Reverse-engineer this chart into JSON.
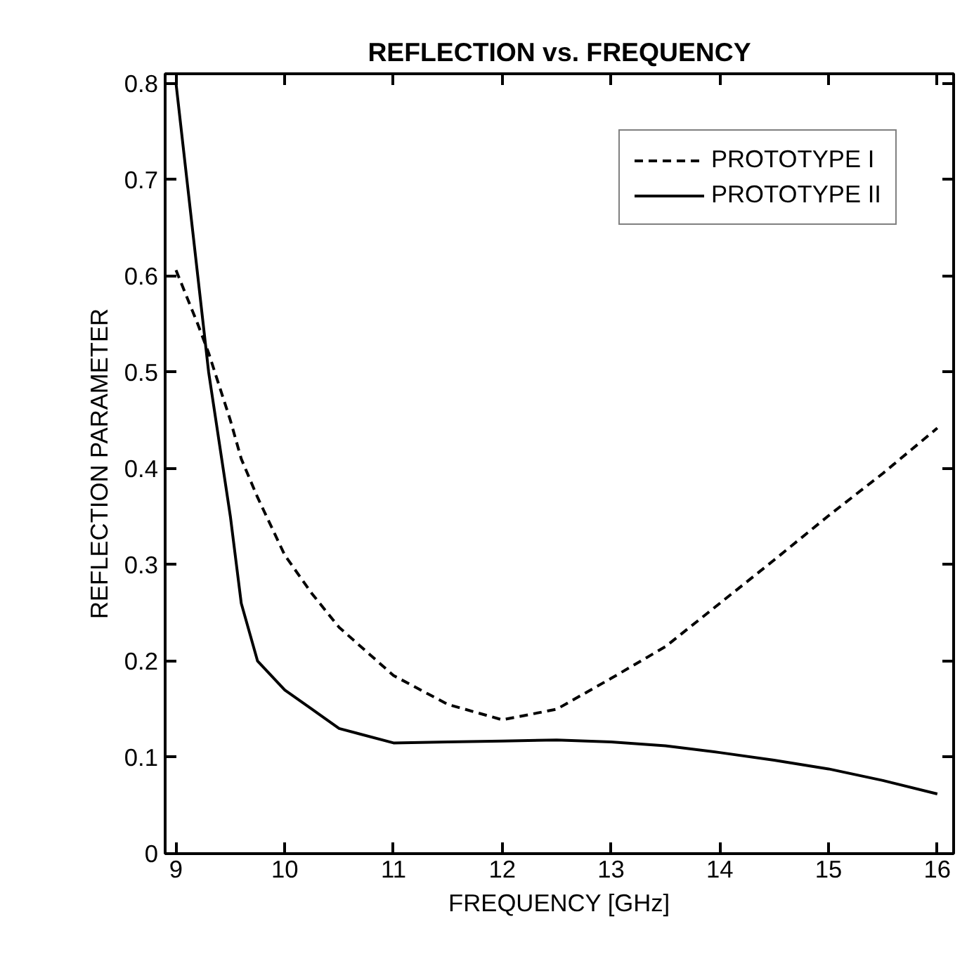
{
  "chart_data": {
    "type": "line",
    "title": "REFLECTION vs. FREQUENCY",
    "xlabel": "FREQUENCY [GHz]",
    "ylabel": "REFLECTION PARAMETER",
    "x": [
      9,
      9.2,
      9.3,
      9.5,
      9.6,
      9.75,
      10,
      10.25,
      10.5,
      11,
      11.5,
      12,
      12.5,
      13,
      13.5,
      14,
      14.5,
      15,
      15.5,
      16
    ],
    "series": [
      {
        "name": "PROTOTYPE I",
        "color": "#000000",
        "line_style": "dashed",
        "values": [
          0.606,
          0.55,
          0.52,
          0.45,
          0.41,
          0.37,
          0.31,
          0.27,
          0.235,
          0.185,
          0.155,
          0.139,
          0.15,
          0.182,
          0.215,
          0.26,
          0.305,
          0.351,
          0.395,
          0.442
        ]
      },
      {
        "name": "PROTOTYPE II",
        "color": "#000000",
        "line_style": "solid",
        "values": [
          0.8,
          0.6,
          0.5,
          0.35,
          0.26,
          0.2,
          0.17,
          0.15,
          0.13,
          0.115,
          0.116,
          0.117,
          0.118,
          0.116,
          0.112,
          0.105,
          0.097,
          0.088,
          0.076,
          0.062
        ]
      }
    ],
    "xlim": [
      8.9,
      16.15
    ],
    "ylim": [
      0,
      0.81
    ],
    "xticks": [
      9,
      10,
      11,
      12,
      13,
      14,
      15,
      16
    ],
    "yticks": [
      0,
      0.1,
      0.2,
      0.3,
      0.4,
      0.5,
      0.6,
      0.7,
      0.8
    ],
    "legend": "top right"
  }
}
